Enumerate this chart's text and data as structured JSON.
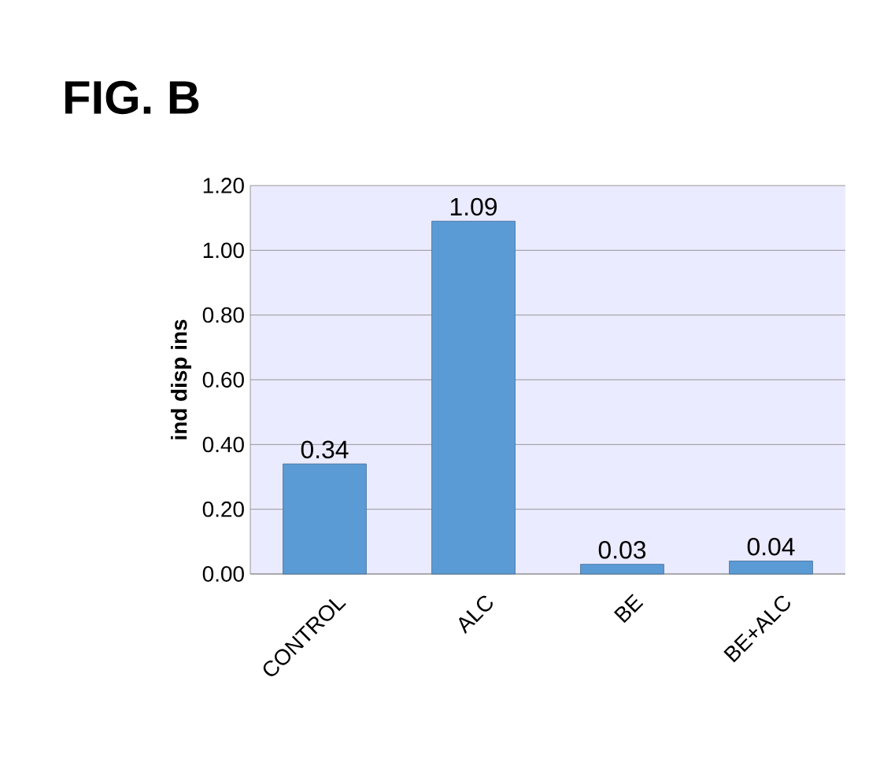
{
  "chart_data": {
    "type": "bar",
    "title": "FIG. B",
    "ylabel": "ind disp ins",
    "categories": [
      "CONTROL",
      "ALC",
      "BE",
      "BE+ALC"
    ],
    "values": [
      0.34,
      1.09,
      0.03,
      0.04
    ],
    "color": "#5b9bd5",
    "ylim": [
      0,
      1.2
    ],
    "yticks": [
      {
        "value": 0,
        "label": "0.00"
      },
      {
        "value": 0.2,
        "label": "0.20"
      },
      {
        "value": 0.4,
        "label": "0.40"
      },
      {
        "value": 0.6,
        "label": "0.60"
      },
      {
        "value": 0.8,
        "label": "0.80"
      },
      {
        "value": 1.0,
        "label": "1.00"
      },
      {
        "value": 1.2,
        "label": "1.20"
      }
    ],
    "grid": "y",
    "data_labels": true
  }
}
